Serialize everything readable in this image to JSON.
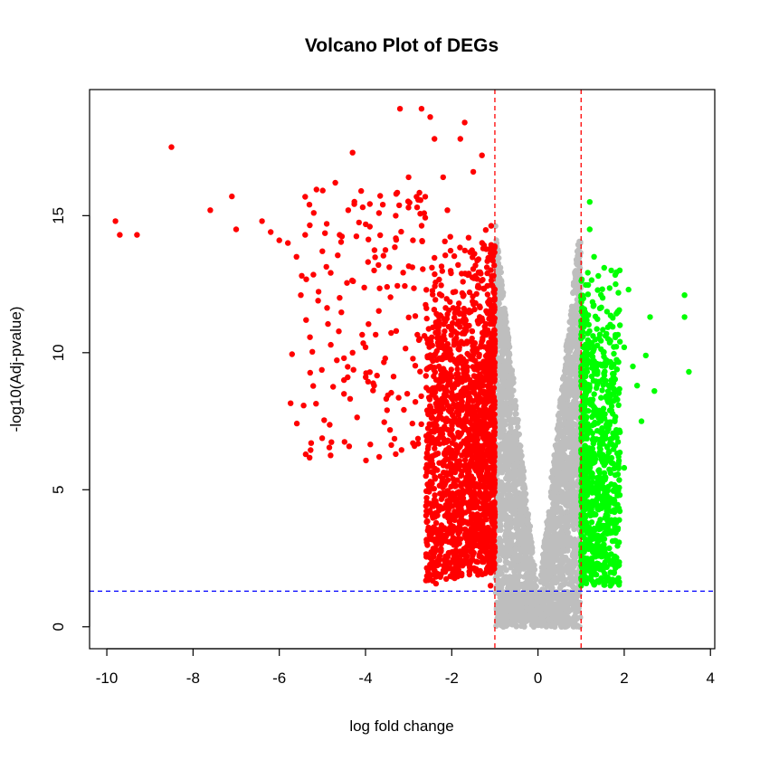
{
  "chart_data": {
    "type": "scatter",
    "title": "Volcano Plot of DEGs",
    "xlabel": "log fold change",
    "ylabel": "-log10(Adj-pvalue)",
    "xlim": [
      -10.4,
      4.1
    ],
    "ylim": [
      -0.8,
      19.6
    ],
    "x_ticks": [
      "-10",
      "-8",
      "-6",
      "-4",
      "-2",
      "0",
      "2",
      "4"
    ],
    "y_ticks": [
      "0",
      "5",
      "10",
      "15"
    ],
    "thresholds": {
      "logfc": [
        -1,
        1
      ],
      "neg_log10_padj": 1.3
    },
    "colors": {
      "down": "#ff0000",
      "up": "#00ff00",
      "not_significant": "#bebebe",
      "logfc_line": "#ff0000",
      "pvalue_line": "#0000ff"
    },
    "series": [
      {
        "category": "down",
        "points": [
          [
            -9.8,
            14.8
          ],
          [
            -9.7,
            14.3
          ],
          [
            -9.3,
            14.3
          ],
          [
            -8.5,
            17.5
          ],
          [
            -7.6,
            15.2
          ],
          [
            -7.1,
            15.7
          ],
          [
            -7.0,
            14.5
          ],
          [
            -6.4,
            14.8
          ],
          [
            -6.2,
            14.4
          ],
          [
            -6.0,
            14.1
          ],
          [
            -5.8,
            14.0
          ],
          [
            -5.6,
            13.5
          ],
          [
            -5.4,
            14.3
          ],
          [
            -5.3,
            15.4
          ],
          [
            -5.2,
            15.1
          ],
          [
            -5.0,
            13.7
          ],
          [
            -4.9,
            14.7
          ],
          [
            -4.7,
            16.2
          ],
          [
            -4.6,
            14.3
          ],
          [
            -4.4,
            15.2
          ],
          [
            -4.3,
            17.3
          ],
          [
            -4.1,
            15.9
          ],
          [
            -3.9,
            14.6
          ],
          [
            -3.7,
            13.2
          ],
          [
            -3.6,
            15.4
          ],
          [
            -3.5,
            12.4
          ],
          [
            -3.3,
            15.0
          ],
          [
            -3.2,
            18.9
          ],
          [
            -3.0,
            16.4
          ],
          [
            -2.9,
            14.1
          ],
          [
            -2.7,
            18.9
          ],
          [
            -2.5,
            18.6
          ],
          [
            -2.4,
            17.8
          ],
          [
            -2.2,
            16.4
          ],
          [
            -2.1,
            15.2
          ],
          [
            -1.8,
            17.8
          ],
          [
            -1.7,
            18.4
          ],
          [
            -1.5,
            16.6
          ],
          [
            -1.3,
            17.2
          ],
          [
            -5.5,
            12.1
          ],
          [
            -5.1,
            11.9
          ],
          [
            -4.6,
            12.0
          ],
          [
            -4.5,
            9.8
          ],
          [
            -4.5,
            9.0
          ],
          [
            -4.5,
            8.5
          ],
          [
            -4.3,
            10.0
          ],
          [
            -3.8,
            8.8
          ],
          [
            -3.5,
            7.9
          ],
          [
            -3.3,
            6.3
          ],
          [
            -2.9,
            6.7
          ],
          [
            -2.6,
            5.5
          ],
          [
            -2.4,
            7.2
          ],
          [
            -2.1,
            4.6
          ],
          [
            -1.9,
            5.8
          ],
          [
            -1.6,
            4.3
          ],
          [
            -1.4,
            3.2
          ],
          [
            -1.2,
            2.0
          ],
          [
            -1.1,
            1.5
          ],
          [
            -4.0,
            10.2
          ],
          [
            -3.8,
            13.0
          ]
        ]
      },
      {
        "category": "up",
        "points": [
          [
            1.2,
            15.5
          ],
          [
            1.2,
            14.5
          ],
          [
            1.3,
            13.5
          ],
          [
            1.4,
            12.8
          ],
          [
            1.5,
            12.0
          ],
          [
            1.6,
            11.5
          ],
          [
            1.7,
            13.0
          ],
          [
            1.8,
            12.5
          ],
          [
            1.9,
            11.0
          ],
          [
            2.0,
            10.2
          ],
          [
            2.1,
            12.3
          ],
          [
            2.2,
            9.5
          ],
          [
            2.3,
            8.8
          ],
          [
            2.4,
            7.5
          ],
          [
            2.5,
            9.9
          ],
          [
            2.6,
            11.3
          ],
          [
            2.7,
            8.6
          ],
          [
            3.4,
            12.1
          ],
          [
            3.4,
            11.3
          ],
          [
            3.5,
            9.3
          ],
          [
            1.1,
            4.0
          ],
          [
            1.2,
            2.9
          ],
          [
            1.3,
            2.0
          ],
          [
            1.1,
            1.8
          ],
          [
            1.0,
            1.5
          ],
          [
            1.5,
            6.0
          ],
          [
            1.7,
            5.2
          ],
          [
            1.9,
            7.1
          ],
          [
            2.0,
            5.8
          ],
          [
            1.6,
            3.4
          ]
        ]
      }
    ]
  }
}
